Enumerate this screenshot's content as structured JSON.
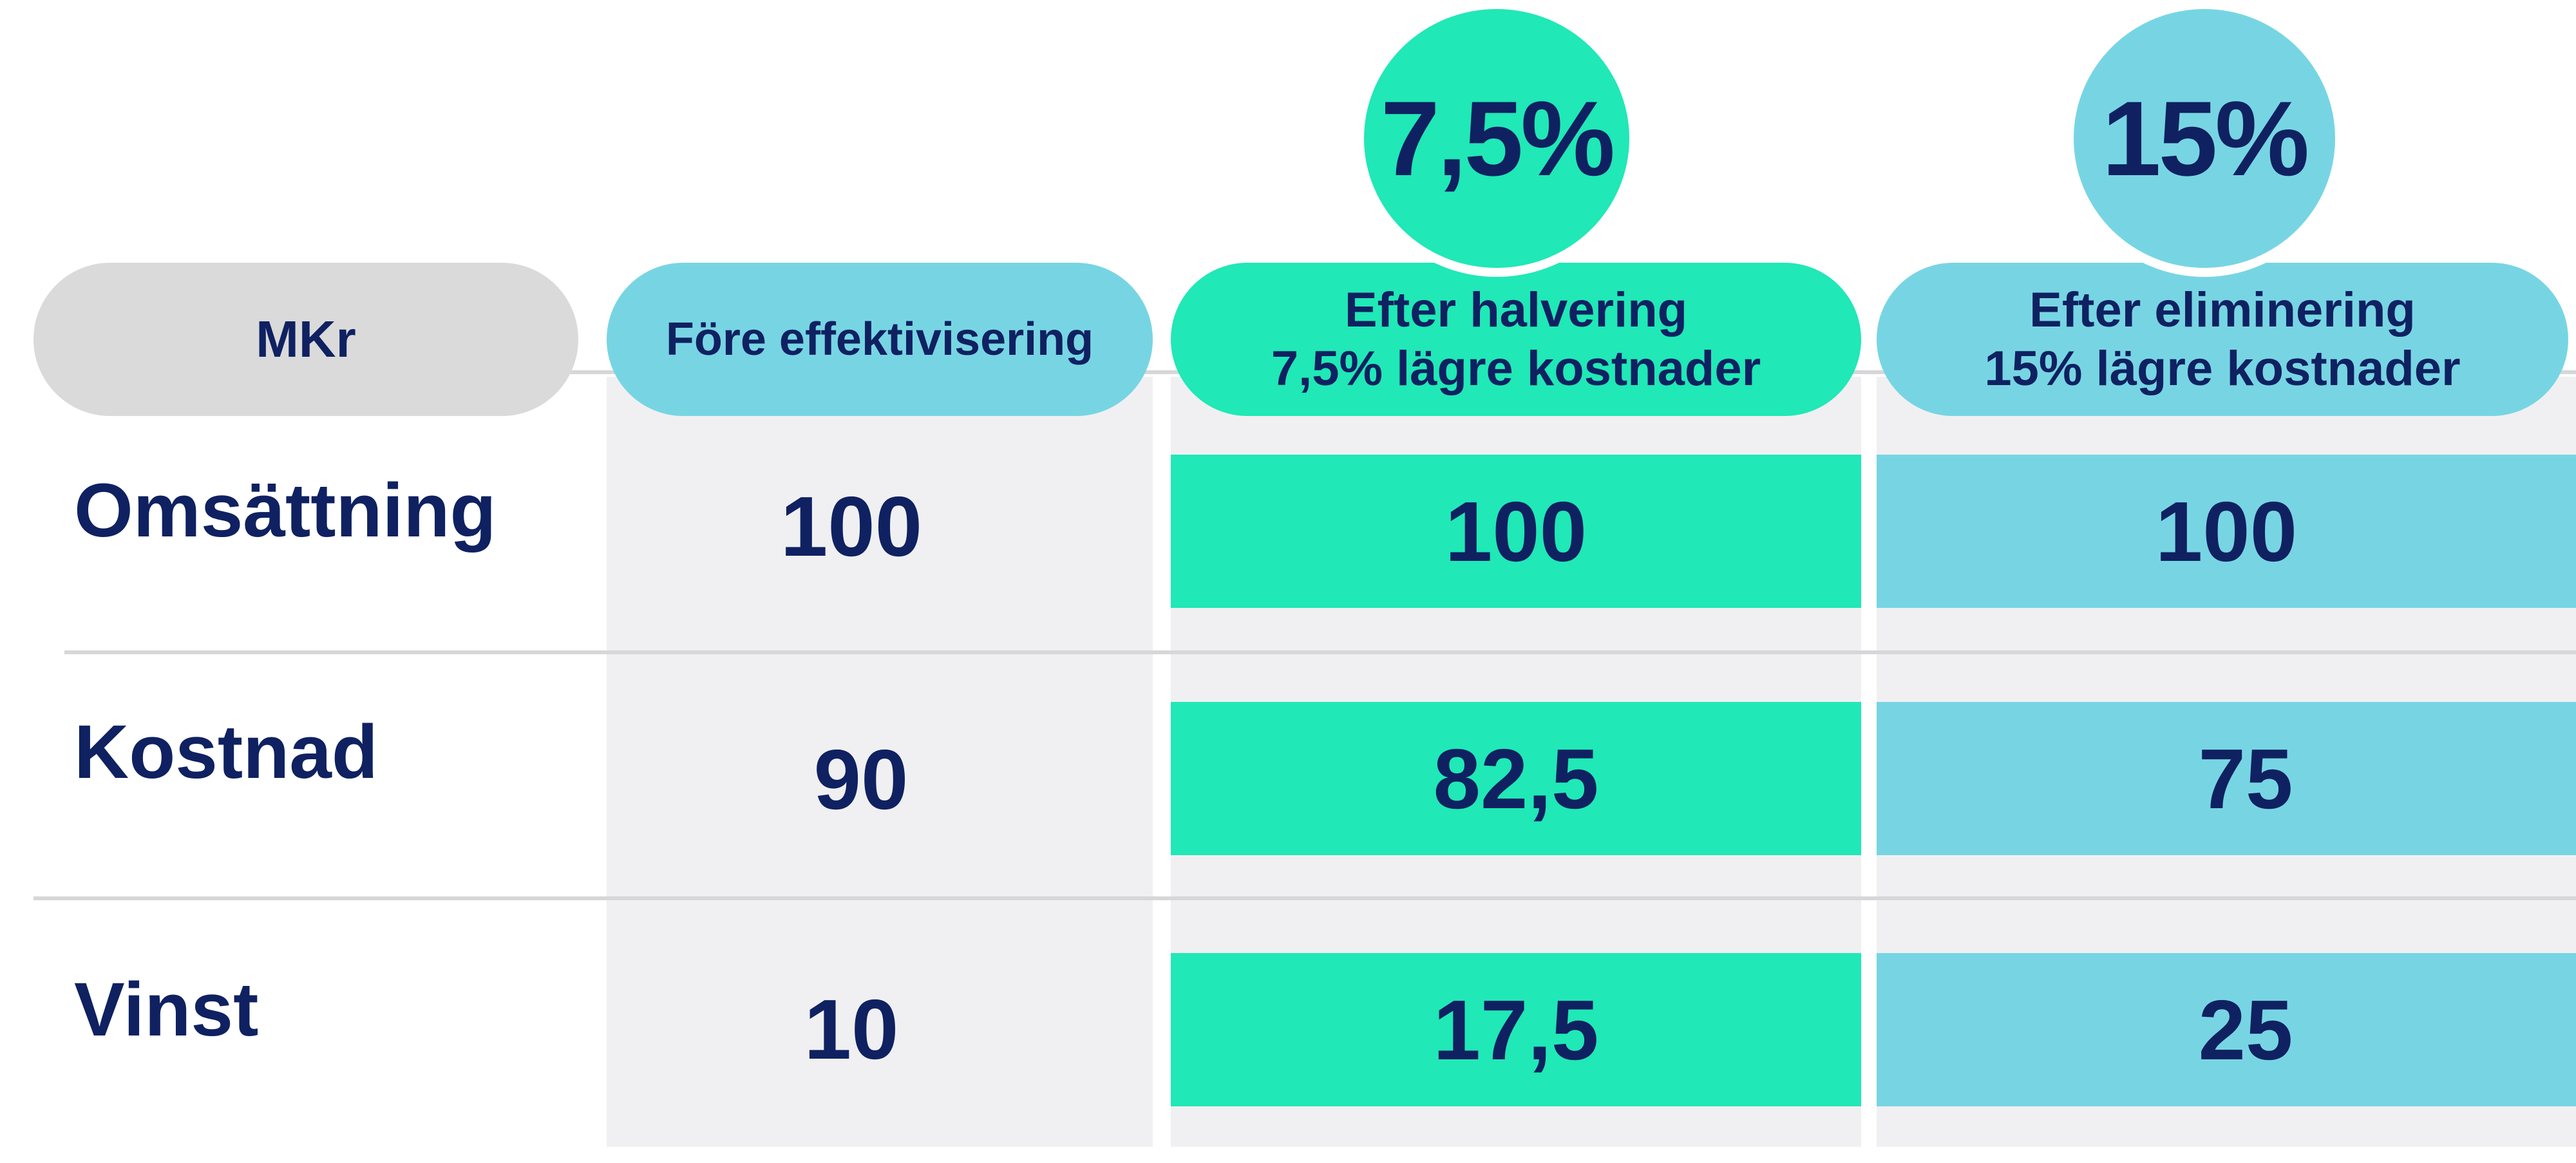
{
  "chart_data": {
    "type": "table",
    "title": "",
    "header_label": "MKr",
    "columns": [
      {
        "name": "Före effektivisering",
        "lines": [
          "Före effektivisering"
        ],
        "color": "#77d5e3"
      },
      {
        "name": "Efter halvering 7,5% lägre kostnader",
        "lines": [
          "Efter halvering",
          "7,5% lägre kostnader"
        ],
        "color": "#20e8b6",
        "badge": "7,5%"
      },
      {
        "name": "Efter eliminering 15% lägre kostnader",
        "lines": [
          "Efter eliminering",
          "15% lägre kostnader"
        ],
        "color": "#77d5e3",
        "badge": "15%"
      }
    ],
    "rows": [
      {
        "label": "Omsättning",
        "display": [
          "100",
          "100",
          "100"
        ],
        "values": [
          100,
          100,
          100
        ]
      },
      {
        "label": "Kostnad",
        "display": [
          "90",
          "82,5",
          "75"
        ],
        "values": [
          90,
          82.5,
          75
        ]
      },
      {
        "label": "Vinst",
        "display": [
          "10",
          "17,5",
          "25"
        ],
        "values": [
          10,
          17.5,
          25
        ]
      }
    ]
  },
  "colors": {
    "text": "#0f2161",
    "header_gray": "#dadada",
    "column_bg": "#f0f0f2",
    "divider": "#d7d7d9",
    "green": "#20e8b6",
    "blue": "#77d5e3"
  }
}
